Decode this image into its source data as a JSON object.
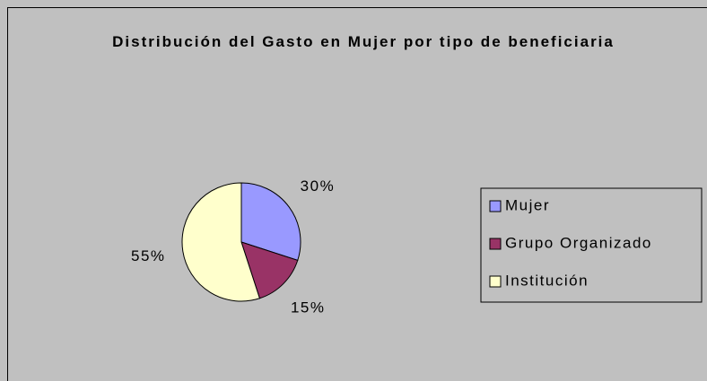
{
  "chart_data": {
    "type": "pie",
    "title": "Distribución del Gasto en Mujer por tipo de beneficiaria",
    "categories": [
      "Mujer",
      "Grupo Organizado",
      "Institución"
    ],
    "values": [
      30,
      15,
      55
    ],
    "value_labels": [
      "30%",
      "15%",
      "55%"
    ],
    "colors": [
      "#9999ff",
      "#993366",
      "#ffffcc"
    ],
    "legend": "right"
  }
}
